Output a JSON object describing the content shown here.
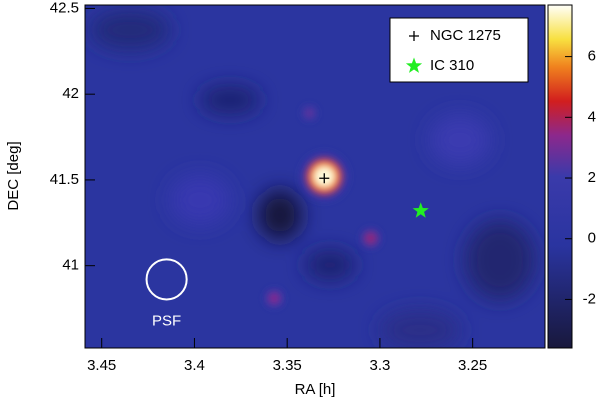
{
  "chart_data": {
    "type": "skymap",
    "x_label": "RA [h]",
    "y_label": "DEC [deg]",
    "xlim": [
      3.459,
      3.211
    ],
    "xticks": [
      3.45,
      3.4,
      3.35,
      3.3,
      3.25
    ],
    "ylim": [
      40.52,
      42.52
    ],
    "yticks": [
      42.5,
      42,
      41.5,
      41
    ],
    "clim": [
      -3.6,
      7.7
    ],
    "cticks": [
      -2,
      0,
      2,
      4,
      6
    ],
    "peaks": [
      {
        "ra": 3.33,
        "dec": 41.52,
        "value": 7.5
      },
      {
        "ra": 3.305,
        "dec": 41.16,
        "value": 3.6
      },
      {
        "ra": 3.357,
        "dec": 40.81,
        "value": 3.4
      },
      {
        "ra": 3.338,
        "dec": 41.89,
        "value": 2.8
      }
    ],
    "sources": [
      {
        "name": "NGC 1275",
        "ra": 3.33,
        "dec": 41.51,
        "marker": "plus",
        "color": "#000000"
      },
      {
        "name": "IC 310",
        "ra": 3.278,
        "dec": 41.32,
        "marker": "star",
        "color": "#22ee22"
      }
    ],
    "psf": {
      "label": "PSF",
      "ra": 3.415,
      "dec": 40.92,
      "radius": 0.117
    }
  }
}
